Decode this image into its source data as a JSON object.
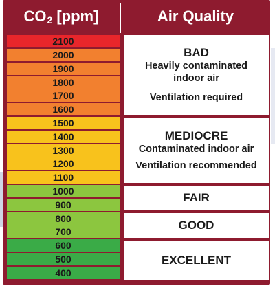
{
  "header": {
    "co2_label": "CO",
    "co2_subscript": "2",
    "co2_unit": "[ppm]",
    "air_quality": "Air Quality"
  },
  "levels": [
    {
      "value": "2100",
      "color": "#e8262b"
    },
    {
      "value": "2000",
      "color": "#f2802f"
    },
    {
      "value": "1900",
      "color": "#f2802f"
    },
    {
      "value": "1800",
      "color": "#f2802f"
    },
    {
      "value": "1700",
      "color": "#f2802f"
    },
    {
      "value": "1600",
      "color": "#f2802f"
    },
    {
      "value": "1500",
      "color": "#f8c21c"
    },
    {
      "value": "1400",
      "color": "#f8c21c"
    },
    {
      "value": "1300",
      "color": "#f8c21c"
    },
    {
      "value": "1200",
      "color": "#f8c21c"
    },
    {
      "value": "1100",
      "color": "#f8c21c"
    },
    {
      "value": "1000",
      "color": "#8cc63f"
    },
    {
      "value": "900",
      "color": "#8cc63f"
    },
    {
      "value": "800",
      "color": "#8cc63f"
    },
    {
      "value": "700",
      "color": "#8cc63f"
    },
    {
      "value": "600",
      "color": "#3aab47"
    },
    {
      "value": "500",
      "color": "#3aab47"
    },
    {
      "value": "400",
      "color": "#3aab47"
    }
  ],
  "qualities": {
    "bad": {
      "title": "BAD",
      "line1": "Heavily contaminated",
      "line2": "indoor air",
      "line3": "Ventilation required"
    },
    "mediocre": {
      "title": "MEDIOCRE",
      "line1": "Contaminated indoor air",
      "line2": "Ventilation recommended"
    },
    "fair": {
      "title": "FAIR"
    },
    "good": {
      "title": "GOOD"
    },
    "excellent": {
      "title": "EXCELLENT"
    }
  },
  "colors": {
    "frame": "#8e1b2f"
  }
}
